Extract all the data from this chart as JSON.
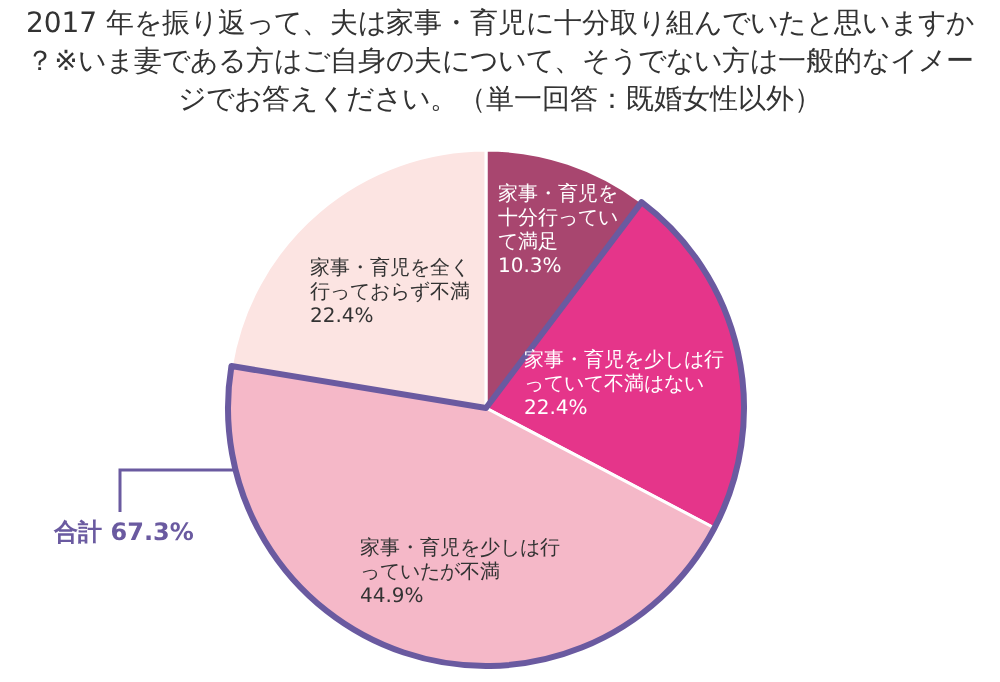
{
  "chart_data": {
    "type": "pie",
    "title": "2017 年を振り返って、夫は家事・育児に十分取り組んでいたと思いますか？※いま妻である方はご自身の夫について、そうでない方は一般的なイメージでお答えください。（単一回答：既婚女性以外）",
    "categories": [
      "家事・育児を十分行っていて満足",
      "家事・育児を少しは行っていて不満はない",
      "家事・育児を少しは行っていたが不満",
      "家事・育児を全く行っておらず不満"
    ],
    "values": [
      10.3,
      22.4,
      44.9,
      22.4
    ],
    "value_labels": [
      "10.3%",
      "22.4%",
      "44.9%",
      "22.4%"
    ],
    "colors": [
      "#a8466f",
      "#e5358a",
      "#f5b8c8",
      "#fce4e2"
    ],
    "annotations": [
      "合計 67.3%"
    ]
  }
}
